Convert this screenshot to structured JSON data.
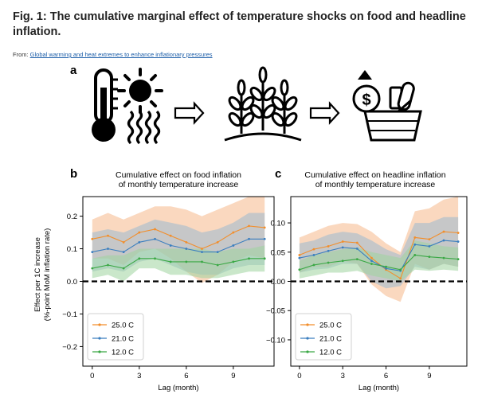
{
  "header": {
    "title": "Fig. 1: The cumulative marginal effect of temperature shocks on food and headline inflation.",
    "from_prefix": "From: ",
    "from_link": "Global warming and heat extremes to enhance inflationary pressures"
  },
  "panel_labels": {
    "a": "a",
    "b": "b",
    "c": "c"
  },
  "icons": [
    "thermometer-icon",
    "sun-icon",
    "heat-waves-icon",
    "arrow-right-icon",
    "crop-plants-icon",
    "grocery-basket-icon",
    "dollar-coin-icon",
    "price-up-triangle-icon"
  ],
  "colors": {
    "s25": "#f28e2b",
    "s21": "#3a7ebf",
    "s12": "#3aa845",
    "band25": "#f6b88a",
    "band21": "#9ab9cf",
    "band12": "#9fd49f"
  },
  "shared": {
    "ylabel_line1": "Effect per 1C increase",
    "ylabel_line2": "(%-point MoM inflation rate)",
    "xlabel": "Lag (month)"
  },
  "chart_data": [
    {
      "type": "line",
      "title_line1": "Cumulative effect on food inflation",
      "title_line2": "of monthly temperature increase",
      "xlabel": "Lag (month)",
      "x": [
        0,
        1,
        2,
        3,
        4,
        5,
        6,
        7,
        8,
        9,
        10,
        11
      ],
      "xticks": [
        0,
        3,
        6,
        9
      ],
      "xtick_labels": [
        "0",
        "3",
        "6",
        "9"
      ],
      "xlim": [
        -0.6,
        11.6
      ],
      "ylim": [
        -0.26,
        0.26
      ],
      "yticks": [
        -0.2,
        -0.1,
        0.0,
        0.1,
        0.2
      ],
      "ytick_labels": [
        "−0.2",
        "−0.1",
        "0.0",
        "0.1",
        "0.2"
      ],
      "zero_line": true,
      "legend": [
        "25.0 C",
        "21.0 C",
        "12.0 C"
      ],
      "legend_position": "lower-left",
      "series": [
        {
          "name": "25.0 C",
          "values": [
            0.13,
            0.14,
            0.12,
            0.15,
            0.16,
            0.14,
            0.12,
            0.1,
            0.12,
            0.15,
            0.17,
            0.165
          ],
          "upper": [
            0.19,
            0.21,
            0.19,
            0.21,
            0.23,
            0.23,
            0.22,
            0.2,
            0.22,
            0.24,
            0.26,
            0.26
          ],
          "lower": [
            0.07,
            0.07,
            0.05,
            0.09,
            0.1,
            0.07,
            0.03,
            -0.005,
            0.02,
            0.06,
            0.08,
            0.07
          ]
        },
        {
          "name": "21.0 C",
          "values": [
            0.09,
            0.1,
            0.09,
            0.12,
            0.13,
            0.11,
            0.1,
            0.09,
            0.09,
            0.11,
            0.13,
            0.13
          ],
          "upper": [
            0.15,
            0.16,
            0.15,
            0.17,
            0.19,
            0.18,
            0.17,
            0.15,
            0.16,
            0.18,
            0.21,
            0.21
          ],
          "lower": [
            0.03,
            0.04,
            0.03,
            0.06,
            0.07,
            0.05,
            0.03,
            0.02,
            0.02,
            0.04,
            0.05,
            0.05
          ]
        },
        {
          "name": "12.0 C",
          "values": [
            0.04,
            0.05,
            0.04,
            0.07,
            0.07,
            0.06,
            0.06,
            0.06,
            0.05,
            0.06,
            0.07,
            0.07
          ],
          "upper": [
            0.07,
            0.08,
            0.08,
            0.1,
            0.1,
            0.1,
            0.1,
            0.1,
            0.09,
            0.1,
            0.1,
            0.11
          ],
          "lower": [
            0.01,
            0.02,
            0.0,
            0.04,
            0.04,
            0.02,
            0.02,
            0.01,
            0.01,
            0.02,
            0.03,
            0.03
          ]
        }
      ]
    },
    {
      "type": "line",
      "title_line1": "Cumulative effect on headline inflation",
      "title_line2": "of monthly temperature increase",
      "xlabel": "Lag (month)",
      "x": [
        0,
        1,
        2,
        3,
        4,
        5,
        6,
        7,
        8,
        9,
        10,
        11
      ],
      "xticks": [
        0,
        3,
        6,
        9
      ],
      "xtick_labels": [
        "0",
        "3",
        "6",
        "9"
      ],
      "xlim": [
        -0.6,
        11.6
      ],
      "ylim": [
        -0.145,
        0.145
      ],
      "yticks": [
        -0.1,
        -0.05,
        0.0,
        0.05,
        0.1
      ],
      "ytick_labels": [
        "−0.10",
        "−0.05",
        "0.00",
        "0.05",
        "0.10"
      ],
      "zero_line": true,
      "legend": [
        "25.0 C",
        "21.0 C",
        "12.0 C"
      ],
      "legend_position": "lower-left",
      "series": [
        {
          "name": "25.0 C",
          "values": [
            0.045,
            0.055,
            0.06,
            0.068,
            0.066,
            0.04,
            0.02,
            0.005,
            0.075,
            0.072,
            0.085,
            0.083
          ],
          "upper": [
            0.075,
            0.085,
            0.095,
            0.1,
            0.098,
            0.085,
            0.065,
            0.05,
            0.12,
            0.125,
            0.14,
            0.145
          ],
          "lower": [
            0.015,
            0.025,
            0.025,
            0.035,
            0.03,
            -0.005,
            -0.025,
            -0.035,
            0.03,
            0.02,
            0.03,
            0.025
          ]
        },
        {
          "name": "21.0 C",
          "values": [
            0.04,
            0.045,
            0.052,
            0.058,
            0.056,
            0.035,
            0.022,
            0.018,
            0.063,
            0.06,
            0.07,
            0.068
          ],
          "upper": [
            0.065,
            0.07,
            0.08,
            0.085,
            0.082,
            0.07,
            0.055,
            0.045,
            0.1,
            0.1,
            0.11,
            0.11
          ],
          "lower": [
            0.015,
            0.02,
            0.022,
            0.03,
            0.03,
            0.0,
            -0.012,
            -0.008,
            0.025,
            0.02,
            0.03,
            0.025
          ]
        },
        {
          "name": "12.0 C",
          "values": [
            0.02,
            0.028,
            0.032,
            0.035,
            0.038,
            0.03,
            0.025,
            0.02,
            0.045,
            0.042,
            0.04,
            0.038
          ],
          "upper": [
            0.035,
            0.045,
            0.05,
            0.055,
            0.058,
            0.05,
            0.045,
            0.04,
            0.07,
            0.065,
            0.06,
            0.058
          ],
          "lower": [
            0.005,
            0.01,
            0.015,
            0.015,
            0.018,
            0.01,
            0.005,
            0.0,
            0.02,
            0.018,
            0.02,
            0.018
          ]
        }
      ]
    }
  ]
}
